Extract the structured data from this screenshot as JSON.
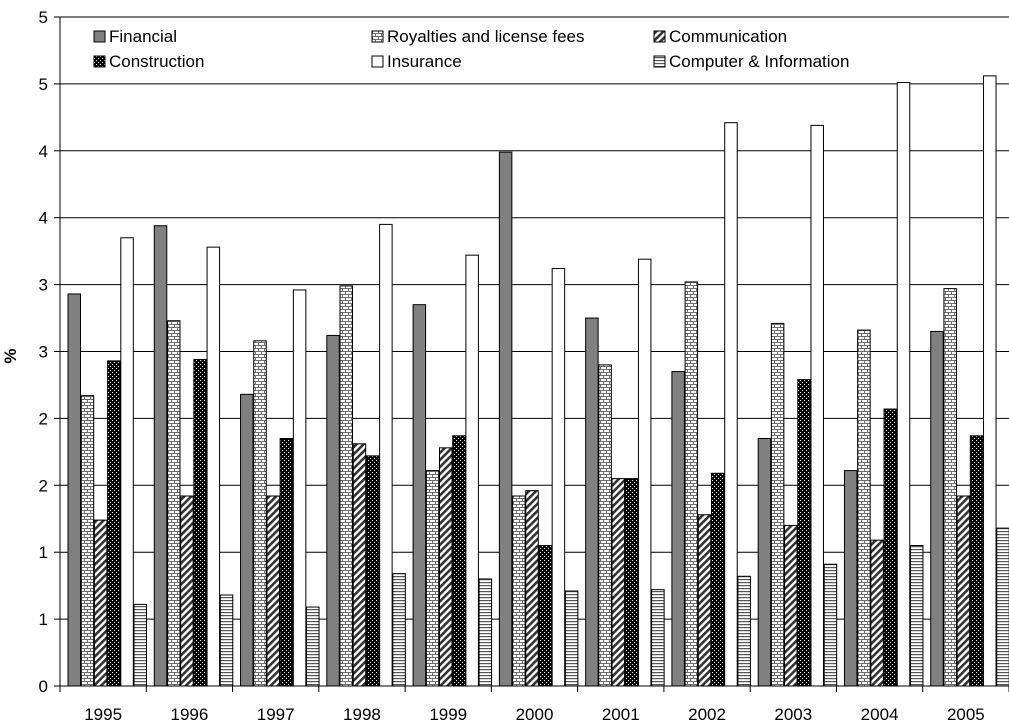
{
  "chart_data": {
    "type": "bar",
    "categories": [
      "1995",
      "1996",
      "1997",
      "1998",
      "1999",
      "2000",
      "2001",
      "2002",
      "2003",
      "2004",
      "2005"
    ],
    "series": [
      {
        "name": "Financial",
        "pattern": "solid-gray",
        "values": [
          2.93,
          3.44,
          2.18,
          2.62,
          2.85,
          3.99,
          2.75,
          2.35,
          1.85,
          1.61,
          2.65
        ]
      },
      {
        "name": "Royalties and license fees",
        "pattern": "brick",
        "values": [
          2.17,
          2.73,
          2.58,
          2.99,
          1.61,
          1.42,
          2.4,
          3.02,
          2.71,
          2.66,
          2.97
        ]
      },
      {
        "name": "Communication",
        "pattern": "diagonal",
        "values": [
          1.24,
          1.42,
          1.42,
          1.81,
          1.78,
          1.46,
          1.55,
          1.28,
          1.2,
          1.09,
          1.42
        ]
      },
      {
        "name": "Construction",
        "pattern": "checker",
        "values": [
          2.43,
          2.44,
          1.85,
          1.72,
          1.87,
          1.05,
          1.55,
          1.59,
          2.29,
          2.07,
          1.87
        ]
      },
      {
        "name": "Insurance",
        "pattern": "white",
        "values": [
          3.35,
          3.28,
          2.96,
          3.45,
          3.22,
          3.12,
          3.19,
          4.21,
          4.19,
          4.51,
          4.56
        ]
      },
      {
        "name": "Computer & Information",
        "pattern": "horizontal",
        "values": [
          0.61,
          0.68,
          0.59,
          0.84,
          0.8,
          0.71,
          0.72,
          0.82,
          0.91,
          1.05,
          1.18
        ]
      }
    ],
    "ylabel": "%",
    "ylim": [
      0,
      5
    ],
    "yticks": [
      0,
      0.5,
      1,
      1.5,
      2,
      2.5,
      3,
      3.5,
      4,
      4.5,
      5
    ],
    "ytick_labels": [
      "0",
      "1",
      "1",
      "2",
      "2",
      "3",
      "3",
      "4",
      "4",
      "5",
      "5"
    ],
    "grid": true,
    "legend": "top"
  }
}
